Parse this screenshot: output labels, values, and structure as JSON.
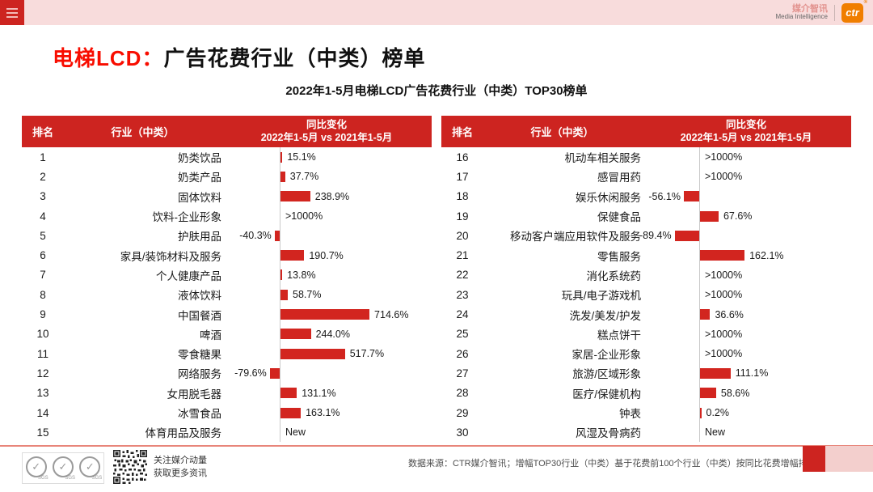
{
  "colors": {
    "header_red": "#cd2420",
    "bar_red": "#d2251f",
    "title_red": "#f80d00",
    "topbar_pink": "#f8dcdc",
    "salmon_line": "#e8857a",
    "ctr_orange": "#f07e00",
    "pink_block": "#f3cfcd"
  },
  "topbar": {
    "brand_cn": "媒介智讯",
    "brand_en": "Media Intelligence",
    "brand_logo": "ctr"
  },
  "title": {
    "prefix": "电梯LCD：",
    "main": "广告花费行业（中类）榜单"
  },
  "subtitle": "2022年1-5月电梯LCD广告花费行业（中类）TOP30榜单",
  "table": {
    "headers": {
      "rank": "排名",
      "industry": "行业（中类）",
      "change_line1": "同比变化",
      "change_line2": "2022年1-5月 vs 2021年1-5月"
    }
  },
  "chart_data": {
    "type": "bar",
    "orientation": "horizontal",
    "title": "2022年1-5月电梯LCD广告花费行业（中类）TOP30榜单",
    "ylabel": "同比变化 2022年1-5月 vs 2021年1-5月",
    "unit": "%",
    "left_rows": [
      {
        "rank": "1",
        "industry": "奶类饮品",
        "label": "15.1%",
        "value": 15.1
      },
      {
        "rank": "2",
        "industry": "奶类产品",
        "label": "37.7%",
        "value": 37.7
      },
      {
        "rank": "3",
        "industry": "固体饮料",
        "label": "238.9%",
        "value": 238.9
      },
      {
        "rank": "4",
        "industry": "饮料-企业形象",
        "label": ">1000%",
        "value": null
      },
      {
        "rank": "5",
        "industry": "护肤用品",
        "label": "-40.3%",
        "value": -40.3
      },
      {
        "rank": "6",
        "industry": "家具/装饰材料及服务",
        "label": "190.7%",
        "value": 190.7
      },
      {
        "rank": "7",
        "industry": "个人健康产品",
        "label": "13.8%",
        "value": 13.8
      },
      {
        "rank": "8",
        "industry": "液体饮料",
        "label": "58.7%",
        "value": 58.7
      },
      {
        "rank": "9",
        "industry": "中国餐酒",
        "label": "714.6%",
        "value": 714.6
      },
      {
        "rank": "10",
        "industry": "啤酒",
        "label": "244.0%",
        "value": 244.0
      },
      {
        "rank": "11",
        "industry": "零食糖果",
        "label": "517.7%",
        "value": 517.7
      },
      {
        "rank": "12",
        "industry": "网络服务",
        "label": "-79.6%",
        "value": -79.6
      },
      {
        "rank": "13",
        "industry": "女用脱毛器",
        "label": "131.1%",
        "value": 131.1
      },
      {
        "rank": "14",
        "industry": "冰雪食品",
        "label": "163.1%",
        "value": 163.1
      },
      {
        "rank": "15",
        "industry": "体育用品及服务",
        "label": "New",
        "value": null
      }
    ],
    "right_rows": [
      {
        "rank": "16",
        "industry": "机动车相关服务",
        "label": ">1000%",
        "value": null
      },
      {
        "rank": "17",
        "industry": "感冒用药",
        "label": ">1000%",
        "value": null
      },
      {
        "rank": "18",
        "industry": "娱乐休闲服务",
        "label": "-56.1%",
        "value": -56.1
      },
      {
        "rank": "19",
        "industry": "保健食品",
        "label": "67.6%",
        "value": 67.6
      },
      {
        "rank": "20",
        "industry": "移动客户端应用软件及服务",
        "label": "-89.4%",
        "value": -89.4
      },
      {
        "rank": "21",
        "industry": "零售服务",
        "label": "162.1%",
        "value": 162.1
      },
      {
        "rank": "22",
        "industry": "消化系统药",
        "label": ">1000%",
        "value": null
      },
      {
        "rank": "23",
        "industry": "玩具/电子游戏机",
        "label": ">1000%",
        "value": null
      },
      {
        "rank": "24",
        "industry": "洗发/美发/护发",
        "label": "36.6%",
        "value": 36.6
      },
      {
        "rank": "25",
        "industry": "糕点饼干",
        "label": ">1000%",
        "value": null
      },
      {
        "rank": "26",
        "industry": "家居-企业形象",
        "label": ">1000%",
        "value": null
      },
      {
        "rank": "27",
        "industry": "旅游/区域形象",
        "label": "111.1%",
        "value": 111.1
      },
      {
        "rank": "28",
        "industry": "医疗/保健机构",
        "label": "58.6%",
        "value": 58.6
      },
      {
        "rank": "29",
        "industry": "钟表",
        "label": "0.2%",
        "value": 0.2
      },
      {
        "rank": "30",
        "industry": "风湿及骨病药",
        "label": "New",
        "value": null
      }
    ]
  },
  "footer": {
    "sgs_label": "SGS",
    "qr_caption_line1": "关注媒介动量",
    "qr_caption_line2": "获取更多资讯",
    "source": "数据来源：CTR媒介智讯；增幅TOP30行业（中类）基于花费前100个行业（中类）按同比花费增幅排序"
  }
}
